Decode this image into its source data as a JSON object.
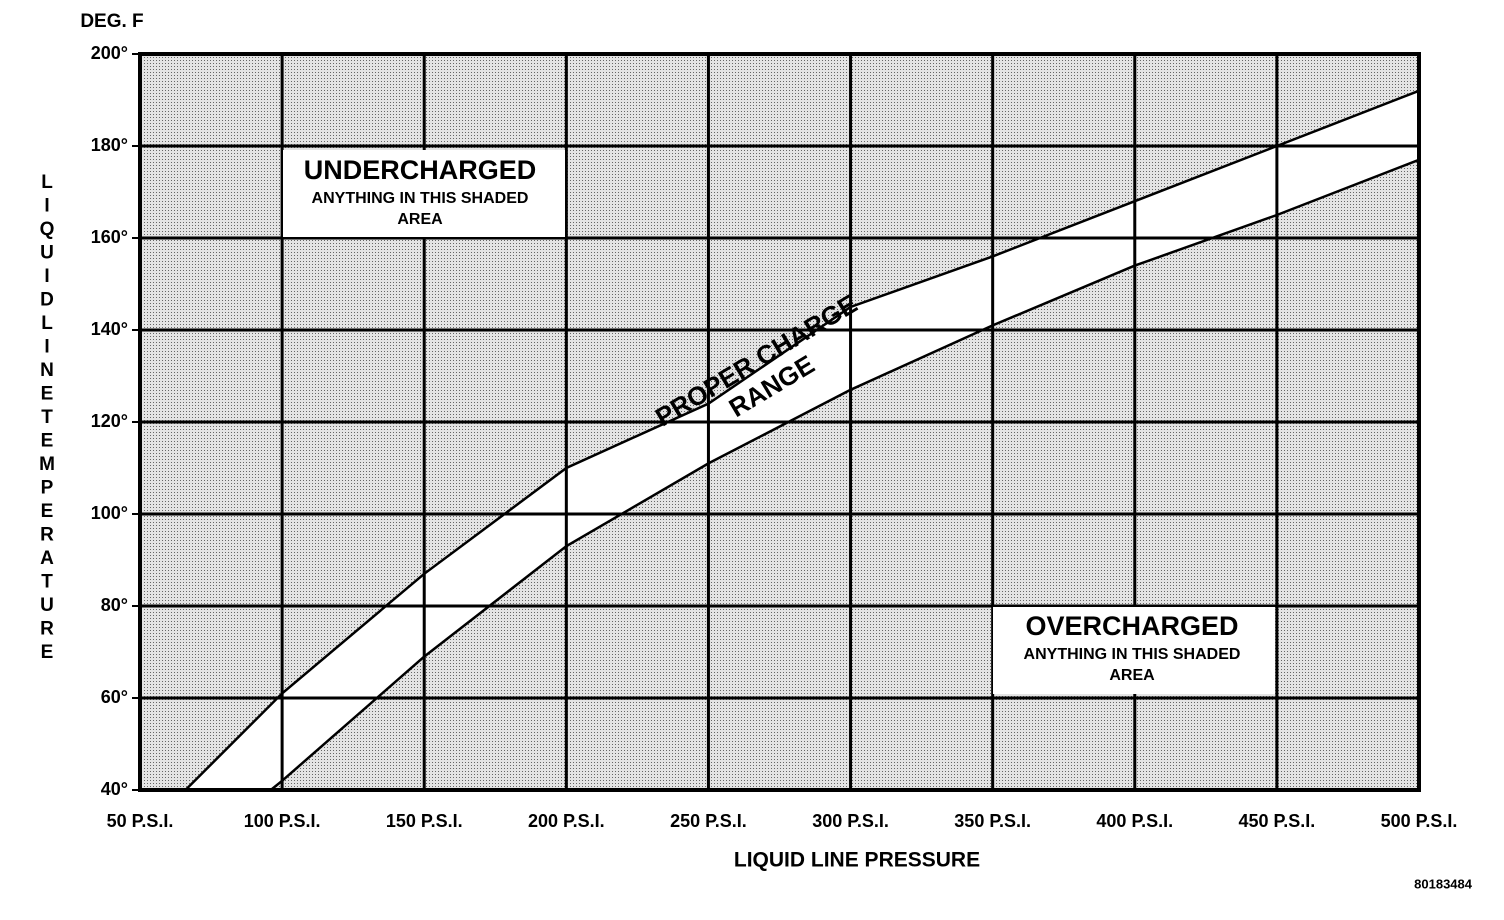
{
  "chart_data": {
    "type": "line",
    "y_unit": "DEG. F",
    "xlabel": "LIQUID LINE PRESSURE",
    "ylabel": "LIQUID LINE TEMPERATURE",
    "xlim": [
      50,
      500
    ],
    "ylim": [
      40,
      200
    ],
    "xticks": [
      {
        "value": 50,
        "label": "50 P.S.I."
      },
      {
        "value": 100,
        "label": "100 P.S.I."
      },
      {
        "value": 150,
        "label": "150 P.S.I."
      },
      {
        "value": 200,
        "label": "200 P.S.I."
      },
      {
        "value": 250,
        "label": "250 P.S.I."
      },
      {
        "value": 300,
        "label": "300 P.S.I."
      },
      {
        "value": 350,
        "label": "350 P.S.I."
      },
      {
        "value": 400,
        "label": "400 P.S.I."
      },
      {
        "value": 450,
        "label": "450 P.S.I."
      },
      {
        "value": 500,
        "label": "500 P.S.I."
      }
    ],
    "yticks": [
      {
        "value": 40,
        "label": "40°"
      },
      {
        "value": 60,
        "label": "60°"
      },
      {
        "value": 80,
        "label": "80°"
      },
      {
        "value": 100,
        "label": "100°"
      },
      {
        "value": 120,
        "label": "120°"
      },
      {
        "value": 140,
        "label": "140°"
      },
      {
        "value": 160,
        "label": "160°"
      },
      {
        "value": 180,
        "label": "180°"
      },
      {
        "value": 200,
        "label": "200°"
      }
    ],
    "grid": true,
    "series": [
      {
        "color": "#000000",
        "x": [
          66,
          100,
          150,
          200,
          250,
          300,
          350,
          400,
          450,
          500
        ],
        "values": [
          40,
          61,
          87,
          110,
          124,
          145,
          156,
          168,
          180,
          192
        ]
      },
      {
        "color": "#000000",
        "x": [
          96,
          100,
          150,
          200,
          250,
          300,
          350,
          400,
          450,
          500
        ],
        "values": [
          40,
          42,
          69,
          93,
          111,
          127,
          141,
          154,
          165,
          177
        ]
      }
    ],
    "annotations": {
      "under_title": "UNDERCHARGED",
      "under_text": [
        "ANYTHING IN THIS SHADED",
        "AREA"
      ],
      "over_title": "OVERCHARGED",
      "over_text": [
        "ANYTHING IN THIS SHADED",
        "AREA"
      ],
      "band_text": [
        "PROPER CHARGE",
        "RANGE"
      ]
    },
    "figure_id": "80183484"
  }
}
